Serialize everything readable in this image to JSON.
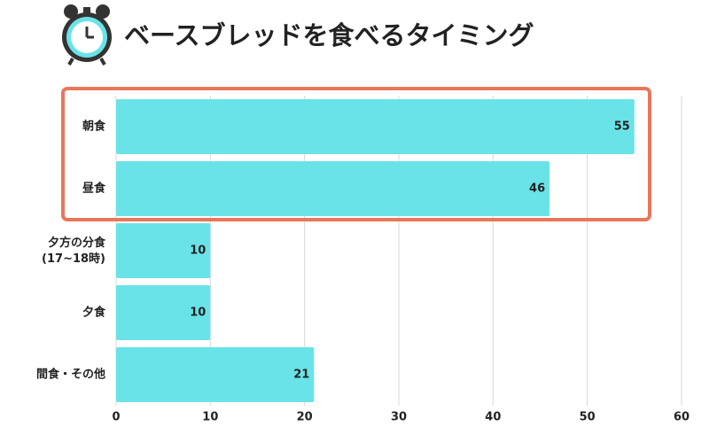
{
  "chart_data": {
    "type": "bar",
    "orientation": "horizontal",
    "title": "ベースブレッドを食べるタイミング",
    "categories": [
      "朝食",
      "昼食",
      "夕方の分食\n(17~18時)",
      "夕食",
      "間食・その他"
    ],
    "values": [
      55,
      46,
      10,
      10,
      21
    ],
    "color": "#6ae3e8",
    "xlim": [
      0,
      60
    ],
    "xticks": [
      0,
      10,
      20,
      30,
      40,
      50,
      60
    ],
    "grid": true
  }
}
